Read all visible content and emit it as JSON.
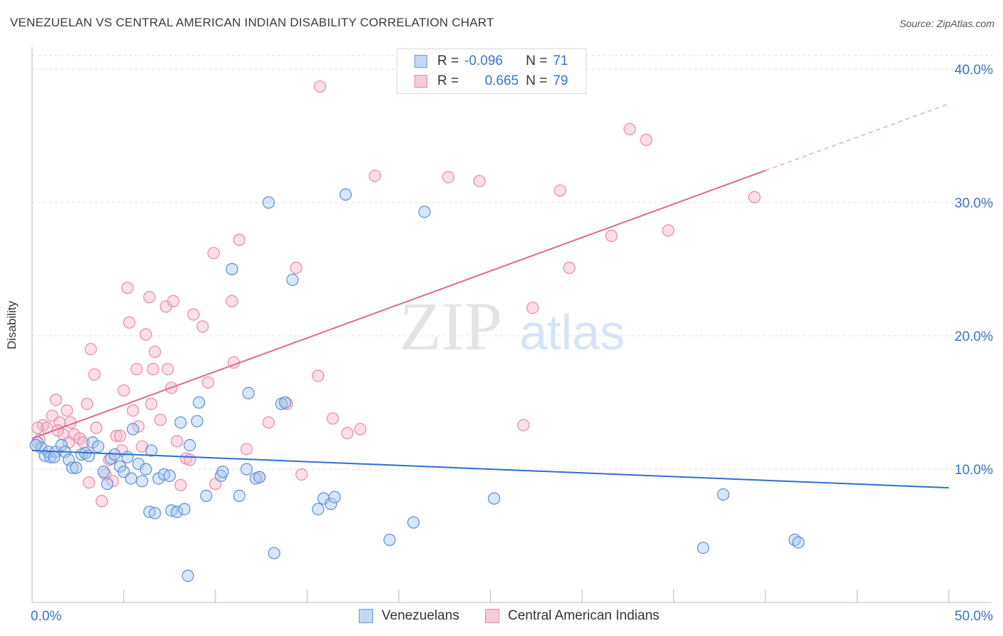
{
  "title": "VENEZUELAN VS CENTRAL AMERICAN INDIAN DISABILITY CORRELATION CHART",
  "source": "Source: ZipAtlas.com",
  "watermark": {
    "zip": "ZIP",
    "atlas": "atlas"
  },
  "colors": {
    "blue": "#5b8fd6",
    "blue_fill": "#a9c8f0",
    "blue_line": "#2f6fcd",
    "pink": "#e88aa6",
    "pink_fill": "#f5b9cb",
    "pink_line": "#e06890",
    "axis_text": "#3a72c9",
    "grid": "#dddddd"
  },
  "legend_box": {
    "rows": [
      {
        "r_label": "R =",
        "r_value": "-0.096",
        "n_label": "N =",
        "n_value": "71",
        "series": "blue"
      },
      {
        "r_label": "R =",
        "r_value": "0.665",
        "n_label": "N =",
        "n_value": "79",
        "series": "pink"
      }
    ]
  },
  "bottom_legend": [
    {
      "label": "Venezuelans",
      "series": "blue"
    },
    {
      "label": "Central American Indians",
      "series": "pink"
    }
  ],
  "chart_data": {
    "type": "scatter",
    "title": "VENEZUELAN VS CENTRAL AMERICAN INDIAN DISABILITY CORRELATION CHART",
    "xlabel": "",
    "ylabel": "Disability",
    "xlim": [
      0,
      50
    ],
    "ylim": [
      0,
      40
    ],
    "x_tick_labels": [
      "0.0%",
      "50.0%"
    ],
    "y_ticks": [
      10,
      20,
      30,
      40
    ],
    "y_tick_labels": [
      "10.0%",
      "20.0%",
      "30.0%",
      "40.0%"
    ],
    "grid": true,
    "legend": "top-center",
    "series": [
      {
        "name": "Venezuelans",
        "color": "#5b8fd6",
        "trend": {
          "x0": 0,
          "y0": 11.4,
          "x1": 50,
          "y1": 8.6,
          "dashed_from": 50
        },
        "points": [
          [
            0.3,
            12.0
          ],
          [
            0.5,
            11.6
          ],
          [
            0.7,
            11.0
          ],
          [
            0.9,
            11.3
          ],
          [
            1.0,
            10.9
          ],
          [
            1.3,
            11.3
          ],
          [
            1.6,
            11.8
          ],
          [
            1.8,
            11.3
          ],
          [
            2.0,
            10.7
          ],
          [
            2.2,
            10.1
          ],
          [
            2.4,
            10.1
          ],
          [
            2.7,
            11.1
          ],
          [
            2.9,
            11.2
          ],
          [
            3.1,
            11.0
          ],
          [
            3.3,
            12.0
          ],
          [
            3.6,
            11.7
          ],
          [
            3.9,
            9.8
          ],
          [
            4.1,
            8.9
          ],
          [
            4.3,
            10.8
          ],
          [
            4.5,
            11.1
          ],
          [
            4.8,
            10.2
          ],
          [
            5.0,
            9.8
          ],
          [
            5.2,
            10.9
          ],
          [
            5.4,
            9.3
          ],
          [
            5.5,
            13.0
          ],
          [
            5.8,
            10.4
          ],
          [
            6.0,
            9.1
          ],
          [
            6.2,
            10.0
          ],
          [
            6.4,
            6.8
          ],
          [
            6.5,
            11.4
          ],
          [
            6.7,
            6.7
          ],
          [
            6.9,
            9.3
          ],
          [
            7.2,
            9.6
          ],
          [
            7.5,
            9.5
          ],
          [
            7.6,
            6.9
          ],
          [
            7.9,
            6.8
          ],
          [
            8.1,
            13.5
          ],
          [
            8.3,
            7.0
          ],
          [
            8.5,
            2.0
          ],
          [
            8.6,
            11.8
          ],
          [
            9.0,
            13.6
          ],
          [
            9.1,
            15.0
          ],
          [
            9.5,
            8.0
          ],
          [
            10.3,
            9.5
          ],
          [
            10.4,
            9.8
          ],
          [
            10.9,
            25.0
          ],
          [
            11.3,
            8.0
          ],
          [
            11.7,
            10.0
          ],
          [
            11.8,
            15.7
          ],
          [
            12.2,
            9.3
          ],
          [
            12.4,
            9.4
          ],
          [
            12.9,
            30.0
          ],
          [
            13.2,
            3.7
          ],
          [
            13.6,
            14.9
          ],
          [
            13.8,
            15.0
          ],
          [
            14.2,
            24.2
          ],
          [
            15.6,
            7.0
          ],
          [
            15.9,
            7.8
          ],
          [
            16.3,
            7.4
          ],
          [
            16.5,
            7.9
          ],
          [
            17.1,
            30.6
          ],
          [
            19.5,
            4.7
          ],
          [
            20.8,
            6.0
          ],
          [
            21.4,
            29.3
          ],
          [
            25.2,
            7.8
          ],
          [
            36.6,
            4.1
          ],
          [
            37.7,
            8.1
          ],
          [
            41.6,
            4.7
          ],
          [
            41.8,
            4.5
          ],
          [
            0.2,
            11.8
          ],
          [
            1.2,
            10.9
          ]
        ]
      },
      {
        "name": "Central American Indians",
        "color": "#e88aa6",
        "trend": {
          "x0": 0,
          "y0": 12.3,
          "x1": 40,
          "y1": 32.4,
          "dashed_to": 50,
          "dashed_y": 37.4
        },
        "points": [
          [
            0.4,
            12.2
          ],
          [
            0.6,
            13.3
          ],
          [
            0.8,
            13.1
          ],
          [
            1.1,
            14.0
          ],
          [
            1.3,
            15.2
          ],
          [
            1.5,
            13.5
          ],
          [
            1.7,
            12.6
          ],
          [
            1.9,
            14.4
          ],
          [
            2.1,
            13.5
          ],
          [
            2.3,
            12.6
          ],
          [
            2.6,
            12.3
          ],
          [
            2.8,
            12.0
          ],
          [
            3.0,
            14.9
          ],
          [
            3.2,
            19.0
          ],
          [
            3.4,
            17.1
          ],
          [
            3.5,
            13.1
          ],
          [
            3.8,
            7.6
          ],
          [
            4.0,
            9.6
          ],
          [
            4.2,
            10.7
          ],
          [
            4.4,
            9.1
          ],
          [
            4.6,
            12.5
          ],
          [
            4.8,
            12.5
          ],
          [
            5.0,
            15.9
          ],
          [
            5.2,
            23.6
          ],
          [
            5.3,
            21.0
          ],
          [
            5.5,
            14.4
          ],
          [
            5.7,
            17.5
          ],
          [
            6.0,
            11.7
          ],
          [
            6.2,
            20.1
          ],
          [
            6.4,
            22.9
          ],
          [
            6.5,
            14.9
          ],
          [
            6.6,
            17.5
          ],
          [
            6.7,
            18.8
          ],
          [
            7.0,
            13.7
          ],
          [
            7.3,
            22.2
          ],
          [
            7.4,
            17.5
          ],
          [
            7.6,
            16.1
          ],
          [
            7.7,
            22.6
          ],
          [
            7.9,
            12.1
          ],
          [
            8.1,
            8.8
          ],
          [
            8.4,
            10.8
          ],
          [
            8.8,
            21.6
          ],
          [
            9.3,
            20.7
          ],
          [
            9.6,
            16.5
          ],
          [
            9.9,
            26.2
          ],
          [
            10.0,
            8.9
          ],
          [
            10.9,
            22.6
          ],
          [
            11.0,
            18.0
          ],
          [
            11.3,
            27.2
          ],
          [
            11.7,
            11.5
          ],
          [
            12.4,
            9.4
          ],
          [
            12.9,
            13.5
          ],
          [
            13.9,
            14.9
          ],
          [
            14.4,
            25.1
          ],
          [
            14.7,
            9.6
          ],
          [
            15.6,
            17.0
          ],
          [
            15.7,
            38.7
          ],
          [
            16.4,
            13.8
          ],
          [
            17.2,
            12.7
          ],
          [
            17.9,
            13.0
          ],
          [
            18.7,
            32.0
          ],
          [
            22.7,
            31.9
          ],
          [
            24.4,
            31.6
          ],
          [
            26.8,
            13.3
          ],
          [
            27.3,
            22.1
          ],
          [
            28.8,
            30.9
          ],
          [
            29.3,
            25.1
          ],
          [
            31.6,
            27.5
          ],
          [
            32.6,
            35.5
          ],
          [
            33.5,
            34.7
          ],
          [
            34.7,
            27.9
          ],
          [
            39.4,
            30.4
          ],
          [
            0.3,
            13.1
          ],
          [
            1.4,
            12.9
          ],
          [
            2.0,
            12.0
          ],
          [
            3.1,
            9.0
          ],
          [
            4.9,
            11.4
          ],
          [
            5.8,
            13.2
          ],
          [
            8.6,
            10.7
          ]
        ]
      }
    ]
  }
}
